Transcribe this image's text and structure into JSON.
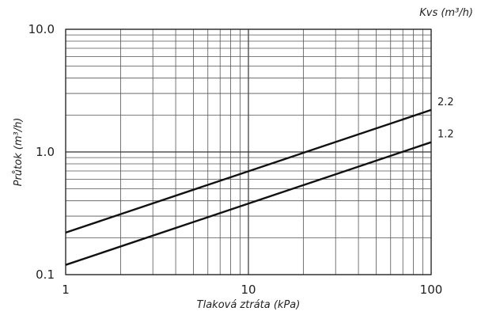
{
  "chart_data": {
    "type": "line",
    "title": "",
    "legend_title": "Kvs (m³/h)",
    "xlabel": "Tlaková ztráta (kPa)",
    "ylabel": "Průtok (m³/h)",
    "x_scale": "log",
    "y_scale": "log",
    "xlim": [
      1,
      100
    ],
    "ylim": [
      0.1,
      10
    ],
    "x_tick_labels": [
      "1",
      "10",
      "100"
    ],
    "x_tick_values": [
      1,
      10,
      100
    ],
    "y_tick_labels": [
      "0.1",
      "1.0",
      "10.0"
    ],
    "y_tick_values": [
      0.1,
      1,
      10
    ],
    "grid": true,
    "series": [
      {
        "name": "2.2",
        "x": [
          1,
          100
        ],
        "y": [
          0.22,
          2.2
        ]
      },
      {
        "name": "1.2",
        "x": [
          1,
          100
        ],
        "y": [
          0.12,
          1.2
        ]
      }
    ]
  }
}
